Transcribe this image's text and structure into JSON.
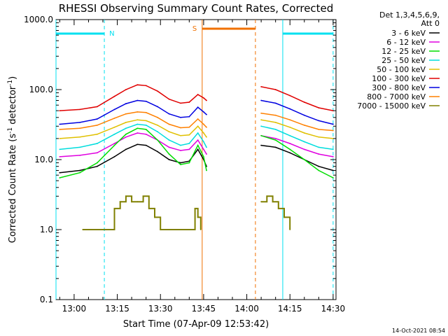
{
  "chart_data": {
    "type": "line",
    "title": "RHESSI Observing Summary Count Rates, Corrected",
    "xlabel": "Start Time (07-Apr-09 12:53:42)",
    "ylabel_main": "Corrected Count Rate (s",
    "ylabel_sup1": "-1",
    "ylabel_mid": " detector",
    "ylabel_sup2": "-1",
    "ylabel_end": ")",
    "yscale": "log",
    "ylim": [
      0.1,
      1000
    ],
    "xlim": [
      "12:53:42",
      "14:31"
    ],
    "x_ticks": [
      "13:00",
      "13:15",
      "13:30",
      "13:45",
      "14:00",
      "14:15",
      "14:30"
    ],
    "y_ticks": [
      "0.1",
      "1.0",
      "10.0",
      "100.0",
      "1000.0"
    ],
    "legend_title": [
      "Det 1,3,4,5,6,9,",
      "Att 0"
    ],
    "legend_placement": "right",
    "timestamp": "14-Oct-2021 08:54",
    "markers": {
      "night_label": "N",
      "saa_label": "S",
      "night_intervals": [
        [
          "12:53:42",
          "13:10:30"
        ],
        [
          "14:12:30",
          "14:30"
        ]
      ],
      "saa_interval": [
        "13:44:30",
        "14:03:00"
      ]
    },
    "series": [
      {
        "name": "3 - 6 keV",
        "color": "#000000",
        "points": [
          [
            "12:55",
            6.5
          ],
          [
            "13:02",
            7
          ],
          [
            "13:08",
            8
          ],
          [
            "13:14",
            11
          ],
          [
            "13:18",
            14
          ],
          [
            "13:22",
            16.5
          ],
          [
            "13:25",
            16
          ],
          [
            "13:29",
            13
          ],
          [
            "13:33",
            10
          ],
          [
            "13:37",
            9
          ],
          [
            "13:40",
            9.5
          ],
          [
            "13:43",
            14
          ],
          [
            "13:45",
            10
          ],
          [
            "13:46",
            8
          ],
          [
            "14:05",
            16
          ],
          [
            "14:10",
            15
          ],
          [
            "14:15",
            12.5
          ],
          [
            "14:20",
            10
          ],
          [
            "14:25",
            8
          ],
          [
            "14:30",
            7
          ]
        ]
      },
      {
        "name": "6 - 12 keV",
        "color": "#e000e0",
        "points": [
          [
            "12:55",
            11
          ],
          [
            "13:02",
            11.5
          ],
          [
            "13:08",
            12.5
          ],
          [
            "13:14",
            17
          ],
          [
            "13:18",
            21
          ],
          [
            "13:22",
            24
          ],
          [
            "13:25",
            23
          ],
          [
            "13:29",
            19
          ],
          [
            "13:33",
            15
          ],
          [
            "13:37",
            13.5
          ],
          [
            "13:40",
            14
          ],
          [
            "13:43",
            19
          ],
          [
            "13:45",
            14
          ],
          [
            "13:46",
            12
          ],
          [
            "14:05",
            22
          ],
          [
            "14:10",
            20
          ],
          [
            "14:15",
            17
          ],
          [
            "14:20",
            14
          ],
          [
            "14:25",
            12
          ],
          [
            "14:30",
            11
          ]
        ]
      },
      {
        "name": "12 - 25 keV",
        "color": "#00dd00",
        "points": [
          [
            "12:55",
            5.5
          ],
          [
            "13:02",
            6.5
          ],
          [
            "13:08",
            9
          ],
          [
            "13:14",
            16
          ],
          [
            "13:18",
            23
          ],
          [
            "13:22",
            28
          ],
          [
            "13:25",
            27
          ],
          [
            "13:29",
            19
          ],
          [
            "13:33",
            12
          ],
          [
            "13:37",
            8.5
          ],
          [
            "13:40",
            9
          ],
          [
            "13:43",
            16
          ],
          [
            "13:45",
            11
          ],
          [
            "13:46",
            7
          ],
          [
            "14:05",
            22
          ],
          [
            "14:10",
            19
          ],
          [
            "14:15",
            14
          ],
          [
            "14:20",
            10
          ],
          [
            "14:25",
            7
          ],
          [
            "14:30",
            5.5
          ]
        ]
      },
      {
        "name": "25 - 50 keV",
        "color": "#00dddd",
        "points": [
          [
            "12:55",
            14
          ],
          [
            "13:02",
            15
          ],
          [
            "13:08",
            17
          ],
          [
            "13:14",
            23
          ],
          [
            "13:18",
            28
          ],
          [
            "13:22",
            32
          ],
          [
            "13:25",
            31
          ],
          [
            "13:29",
            25
          ],
          [
            "13:33",
            19
          ],
          [
            "13:37",
            16
          ],
          [
            "13:40",
            17
          ],
          [
            "13:43",
            24
          ],
          [
            "13:45",
            18
          ],
          [
            "13:46",
            15
          ],
          [
            "14:05",
            30
          ],
          [
            "14:10",
            27
          ],
          [
            "14:15",
            22
          ],
          [
            "14:20",
            18
          ],
          [
            "14:25",
            15
          ],
          [
            "14:30",
            14
          ]
        ]
      },
      {
        "name": "50 - 100 keV",
        "color": "#e0c000",
        "points": [
          [
            "12:55",
            20
          ],
          [
            "13:02",
            21
          ],
          [
            "13:08",
            23
          ],
          [
            "13:14",
            29
          ],
          [
            "13:18",
            34
          ],
          [
            "13:22",
            37
          ],
          [
            "13:25",
            36
          ],
          [
            "13:29",
            31
          ],
          [
            "13:33",
            25
          ],
          [
            "13:37",
            22
          ],
          [
            "13:40",
            22.5
          ],
          [
            "13:43",
            30
          ],
          [
            "13:45",
            24
          ],
          [
            "13:46",
            21
          ],
          [
            "14:05",
            37
          ],
          [
            "14:10",
            34
          ],
          [
            "14:15",
            29
          ],
          [
            "14:20",
            24
          ],
          [
            "14:25",
            21
          ],
          [
            "14:30",
            20
          ]
        ]
      },
      {
        "name": "100 - 300 keV",
        "color": "#e00000",
        "points": [
          [
            "12:55",
            50
          ],
          [
            "13:02",
            52
          ],
          [
            "13:08",
            57
          ],
          [
            "13:14",
            80
          ],
          [
            "13:18",
            100
          ],
          [
            "13:22",
            117
          ],
          [
            "13:25",
            114
          ],
          [
            "13:29",
            95
          ],
          [
            "13:33",
            73
          ],
          [
            "13:37",
            64
          ],
          [
            "13:40",
            66
          ],
          [
            "13:43",
            85
          ],
          [
            "13:45",
            76
          ],
          [
            "13:46",
            70
          ],
          [
            "14:05",
            110
          ],
          [
            "14:10",
            100
          ],
          [
            "14:15",
            82
          ],
          [
            "14:20",
            66
          ],
          [
            "14:25",
            55
          ],
          [
            "14:30",
            50
          ]
        ]
      },
      {
        "name": "300 - 800 keV",
        "color": "#0000e0",
        "points": [
          [
            "12:55",
            32
          ],
          [
            "13:02",
            34
          ],
          [
            "13:08",
            38
          ],
          [
            "13:14",
            52
          ],
          [
            "13:18",
            63
          ],
          [
            "13:22",
            70
          ],
          [
            "13:25",
            68
          ],
          [
            "13:29",
            57
          ],
          [
            "13:33",
            45
          ],
          [
            "13:37",
            40
          ],
          [
            "13:40",
            41
          ],
          [
            "13:43",
            56
          ],
          [
            "13:45",
            48
          ],
          [
            "13:46",
            44
          ],
          [
            "14:05",
            70
          ],
          [
            "14:10",
            64
          ],
          [
            "14:15",
            53
          ],
          [
            "14:20",
            43
          ],
          [
            "14:25",
            36
          ],
          [
            "14:30",
            32
          ]
        ]
      },
      {
        "name": "800 - 7000 keV",
        "color": "#ff8000",
        "points": [
          [
            "12:55",
            27
          ],
          [
            "13:02",
            28
          ],
          [
            "13:08",
            31
          ],
          [
            "13:14",
            39
          ],
          [
            "13:18",
            45
          ],
          [
            "13:22",
            48
          ],
          [
            "13:25",
            47
          ],
          [
            "13:29",
            40
          ],
          [
            "13:33",
            32
          ],
          [
            "13:37",
            28.5
          ],
          [
            "13:40",
            29
          ],
          [
            "13:43",
            38
          ],
          [
            "13:45",
            32
          ],
          [
            "13:46",
            29
          ],
          [
            "14:05",
            46
          ],
          [
            "14:10",
            43
          ],
          [
            "14:15",
            37
          ],
          [
            "14:20",
            31
          ],
          [
            "14:25",
            27
          ],
          [
            "14:30",
            26
          ]
        ]
      },
      {
        "name": "7000 - 15000 keV",
        "color": "#808000",
        "points": [
          [
            "13:03",
            1
          ],
          [
            "13:07",
            1
          ],
          [
            "13:10",
            1
          ],
          [
            "13:12",
            1
          ],
          [
            "13:14",
            2
          ],
          [
            "13:16",
            2.5
          ],
          [
            "13:18",
            3
          ],
          [
            "13:20",
            2.5
          ],
          [
            "13:22",
            2.5
          ],
          [
            "13:24",
            3
          ],
          [
            "13:26",
            2
          ],
          [
            "13:28",
            1.5
          ],
          [
            "13:30",
            1
          ],
          [
            "13:33",
            1
          ],
          [
            "13:42",
            2
          ],
          [
            "13:43",
            1.5
          ],
          [
            "13:44",
            1
          ],
          [
            "14:05",
            2.5
          ],
          [
            "14:07",
            3
          ],
          [
            "14:09",
            2.5
          ],
          [
            "14:11",
            2
          ],
          [
            "14:13",
            1.5
          ],
          [
            "14:15",
            1
          ]
        ]
      }
    ]
  }
}
